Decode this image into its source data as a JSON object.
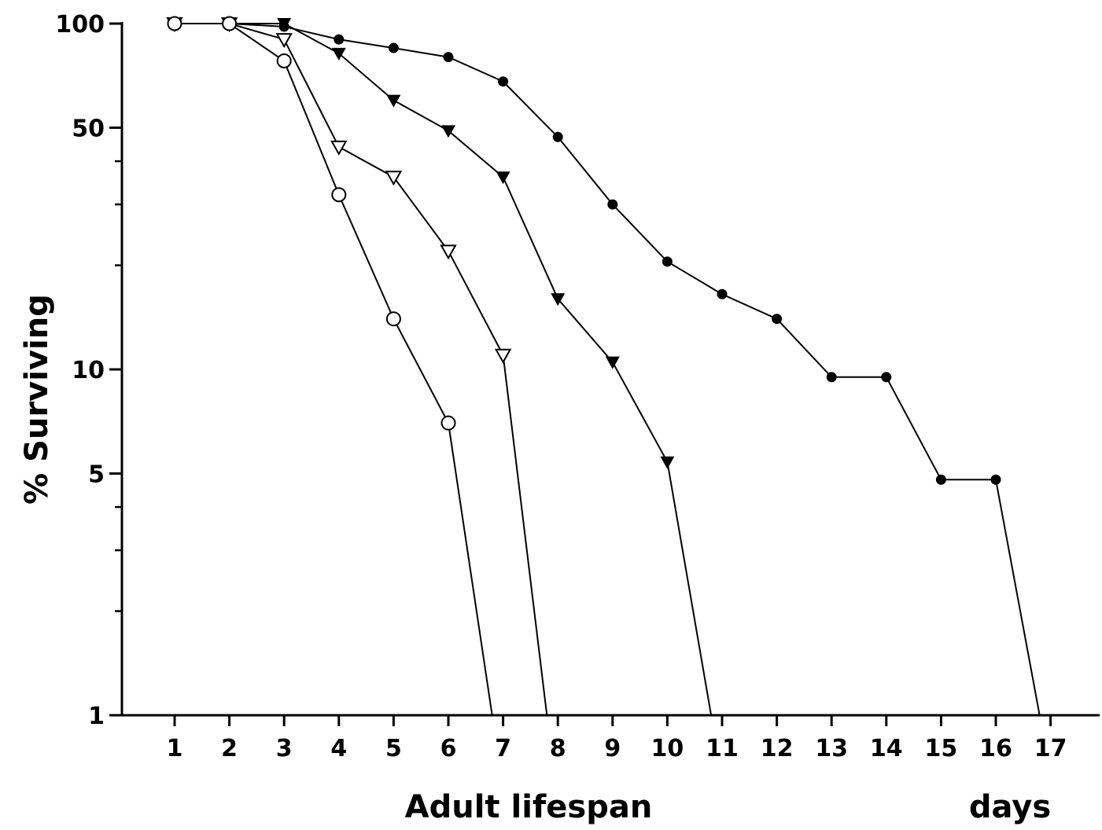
{
  "chart_data": {
    "type": "line",
    "xlabel": "Adult lifespan",
    "xunit": "days",
    "ylabel": "% Surviving",
    "yscale": "log",
    "xlim": [
      0.1,
      17.9
    ],
    "ylim": [
      1,
      100
    ],
    "x_ticks": [
      1,
      2,
      3,
      4,
      5,
      6,
      7,
      8,
      9,
      10,
      11,
      12,
      13,
      14,
      15,
      16,
      17
    ],
    "y_ticks_labeled": [
      1,
      5,
      10,
      50,
      100
    ],
    "y_ticks_minor": [
      2,
      3,
      4,
      20,
      30,
      40
    ],
    "grid": false,
    "legend": "none",
    "series": [
      {
        "marker": "filled-circle-small",
        "color": "#000000",
        "x": [
          1,
          2,
          3,
          4,
          5,
          6,
          7,
          8,
          9,
          10,
          11,
          12,
          13,
          14,
          15,
          16,
          16.8
        ],
        "y": [
          100,
          100,
          98,
          90,
          85,
          80,
          68,
          47,
          30,
          20.5,
          16.5,
          14,
          9.5,
          9.5,
          4.8,
          4.8,
          1
        ]
      },
      {
        "marker": "filled-triangle-down",
        "color": "#000000",
        "x": [
          1,
          2,
          3,
          4,
          5,
          6,
          7,
          8,
          9,
          10,
          10.8
        ],
        "y": [
          100,
          100,
          100,
          82,
          60,
          49,
          36,
          16,
          10.5,
          5.4,
          1
        ]
      },
      {
        "marker": "open-triangle-down",
        "color": "#000000",
        "x": [
          1,
          2,
          3,
          4,
          5,
          6,
          7,
          7.8
        ],
        "y": [
          100,
          100,
          90,
          44,
          36,
          22,
          11,
          1
        ]
      },
      {
        "marker": "open-circle",
        "color": "#000000",
        "x": [
          1,
          2,
          3,
          4,
          5,
          6,
          6.8
        ],
        "y": [
          100,
          100,
          78,
          32,
          14,
          7,
          1
        ]
      }
    ]
  }
}
